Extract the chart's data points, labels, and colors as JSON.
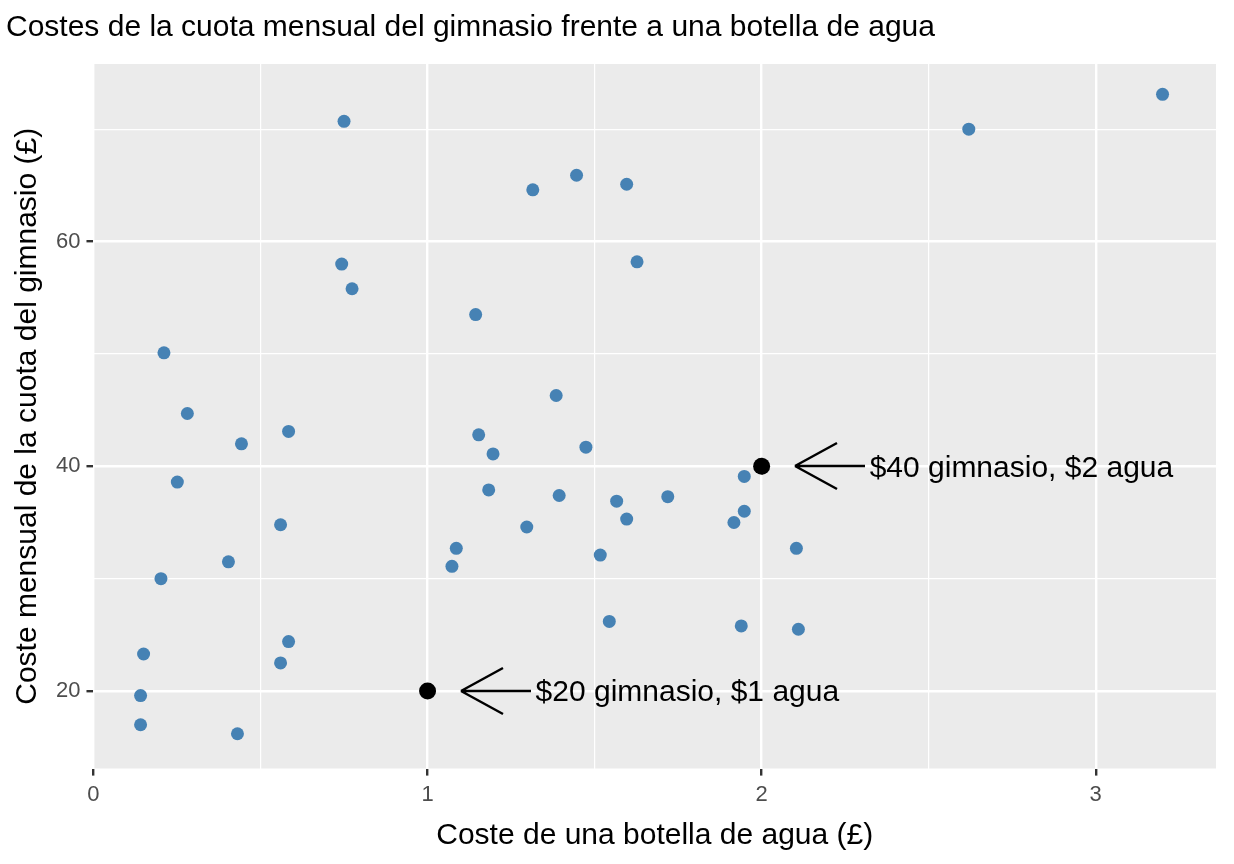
{
  "chart_data": {
    "type": "scatter",
    "title": "Costes de la cuota mensual del gimnasio frente a una botella de agua",
    "xlabel": "Coste de una botella de agua (£)",
    "ylabel": "Coste mensual de la cuota del gimnasio (£)",
    "xlim": [
      0,
      3.36
    ],
    "ylim": [
      13.1,
      75.8
    ],
    "xticks": [
      0,
      {
        "value": 0.5,
        "label": null
      },
      1,
      {
        "value": 1.5,
        "label": null
      },
      2,
      {
        "value": 2.5,
        "label": null
      },
      3
    ],
    "yticks": [
      20,
      {
        "value": 30,
        "label": null
      },
      40,
      {
        "value": 50,
        "label": null
      },
      60,
      {
        "value": 70,
        "label": null
      }
    ],
    "grid": true,
    "legend": false,
    "marker": "circle",
    "series": [
      {
        "color": "#4682b4",
        "x": [
          0.75,
          3.2,
          2.62,
          1.315,
          1.446,
          1.596,
          1.627,
          0.743,
          0.774,
          1.144,
          0.211,
          0.281,
          0.443,
          0.584,
          1.385,
          1.153,
          1.196,
          1.474,
          0.251,
          1.183,
          1.394,
          1.566,
          1.719,
          1.596,
          1.948,
          1.948,
          1.917,
          0.56,
          1.297,
          1.086,
          1.073,
          1.517,
          2.104,
          0.404,
          0.202,
          1.544,
          1.939,
          2.11,
          0.15,
          0.584,
          0.56,
          0.141,
          0.141,
          0.431
        ],
        "values": [
          70.7,
          73.1,
          70.0,
          64.6,
          65.9,
          65.1,
          58.2,
          58.0,
          55.8,
          53.5,
          50.1,
          44.7,
          42.0,
          43.1,
          46.3,
          42.8,
          41.1,
          41.7,
          38.6,
          37.9,
          37.4,
          36.9,
          37.3,
          35.3,
          39.1,
          36.0,
          35.0,
          34.8,
          34.6,
          32.7,
          31.1,
          32.1,
          32.7,
          31.5,
          30.0,
          26.2,
          25.8,
          25.5,
          23.3,
          24.4,
          22.5,
          19.6,
          17.0,
          16.2
        ]
      },
      {
        "color": "#000000",
        "x": [
          1,
          2
        ],
        "values": [
          20,
          40
        ]
      }
    ],
    "annotations": [
      "$20 gimnasio, $1 agua",
      "$40 gimnasio, $2 agua"
    ]
  }
}
